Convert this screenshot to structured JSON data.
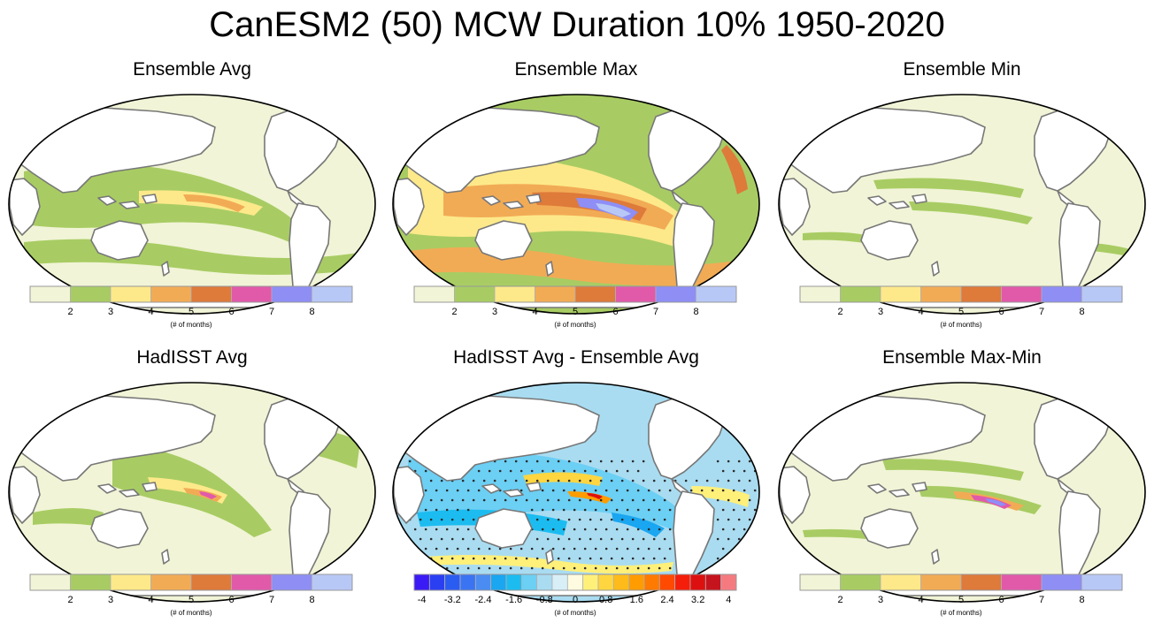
{
  "title": "CanESM2 (50) MCW Duration 10% 1950-2020",
  "colorbar_unit": "(# of months)",
  "duration_scale": {
    "colors": [
      "#f1f4d6",
      "#a8cc63",
      "#fde98a",
      "#f2ab55",
      "#de7a3a",
      "#e15aaa",
      "#8e8ef5",
      "#b8c8f6"
    ],
    "labels": [
      "2",
      "3",
      "4",
      "5",
      "6",
      "7",
      "8"
    ]
  },
  "diff_scale": {
    "colors": [
      "#3a1bf5",
      "#2b3ff2",
      "#2b5cf2",
      "#3a74f2",
      "#4a8cf2",
      "#1aa6f0",
      "#1cbcf0",
      "#6ccff4",
      "#a9dcf1",
      "#d8eff8",
      "#fffbe0",
      "#fff07a",
      "#ffd640",
      "#ffbb1a",
      "#ff9c00",
      "#ff7a00",
      "#ff4a00",
      "#f51e0a",
      "#dd1010",
      "#c5141e",
      "#f57a80"
    ],
    "labels": [
      "-4",
      "-3.2",
      "-2.4",
      "-1.6",
      "-0.8",
      "0",
      "0.8",
      "1.6",
      "2.4",
      "3.2",
      "4"
    ]
  },
  "chart_data": [
    {
      "type": "heatmap",
      "title": "Ensemble Avg",
      "colorbar": "duration",
      "unit": "(# of months)",
      "dominant_value_range": [
        1,
        3
      ],
      "max_value_approx": 5,
      "max_region": "central equatorial Pacific"
    },
    {
      "type": "heatmap",
      "title": "Ensemble Max",
      "colorbar": "duration",
      "unit": "(# of months)",
      "dominant_value_range": [
        2,
        5
      ],
      "max_value_approx": 8,
      "max_region": "eastern equatorial Pacific"
    },
    {
      "type": "heatmap",
      "title": "Ensemble Min",
      "colorbar": "duration",
      "unit": "(# of months)",
      "dominant_value_range": [
        1,
        2
      ],
      "max_value_approx": 3,
      "max_region": "tropical Pacific"
    },
    {
      "type": "heatmap",
      "title": "HadISST Avg",
      "colorbar": "duration",
      "unit": "(# of months)",
      "dominant_value_range": [
        1,
        3
      ],
      "max_value_approx": 7,
      "max_region": "central Pacific"
    },
    {
      "type": "heatmap",
      "title": "HadISST Avg - Ensemble Avg",
      "colorbar": "difference",
      "unit": "(# of months)",
      "value_range": [
        -4,
        4
      ],
      "stippling": "statistically significant areas marked with dots",
      "max_value_approx": 2.4,
      "min_value_approx": -2.4
    },
    {
      "type": "heatmap",
      "title": "Ensemble Max-Min",
      "colorbar": "duration",
      "unit": "(# of months)",
      "dominant_value_range": [
        1,
        2
      ],
      "max_value_approx": 7,
      "max_region": "eastern equatorial Pacific"
    }
  ]
}
